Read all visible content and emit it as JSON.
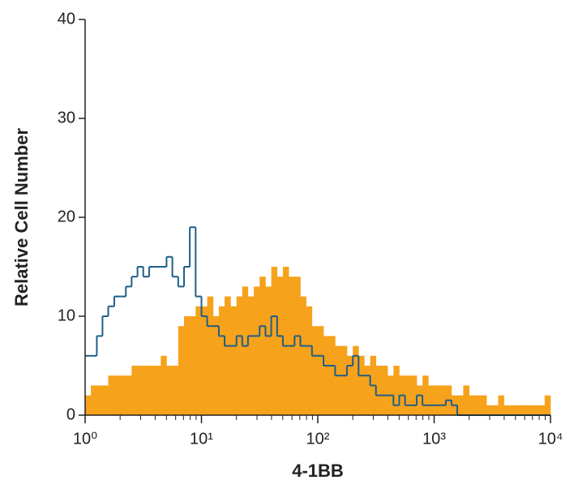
{
  "chart_data": {
    "type": "histogram",
    "xlabel": "4-1BB",
    "ylabel": "Relative Cell Number",
    "xscale": "log",
    "xlim": [
      1,
      10000
    ],
    "ylim": [
      0,
      40
    ],
    "xticks": [
      {
        "value": 1,
        "label": "10⁰"
      },
      {
        "value": 10,
        "label": "10¹"
      },
      {
        "value": 100,
        "label": "10²"
      },
      {
        "value": 1000,
        "label": "10³"
      },
      {
        "value": 10000,
        "label": "10⁴"
      }
    ],
    "xminorticks": [
      2,
      3,
      4,
      5,
      6,
      7,
      8,
      9,
      20,
      30,
      40,
      50,
      60,
      70,
      80,
      90,
      200,
      300,
      400,
      500,
      600,
      700,
      800,
      900,
      2000,
      3000,
      4000,
      5000,
      6000,
      7000,
      8000,
      9000
    ],
    "yticks": [
      0,
      10,
      20,
      30,
      40
    ],
    "bins": [
      1,
      1.12,
      1.26,
      1.41,
      1.58,
      1.78,
      2,
      2.24,
      2.51,
      2.82,
      3.16,
      3.55,
      3.98,
      4.47,
      5.01,
      5.62,
      6.31,
      7.08,
      7.94,
      8.91,
      10,
      11.2,
      12.6,
      14.1,
      15.8,
      17.8,
      20,
      22.4,
      25.1,
      28.2,
      31.6,
      35.5,
      39.8,
      44.7,
      50.1,
      56.2,
      63.1,
      70.8,
      79.4,
      89.1,
      100,
      112,
      126,
      141,
      158,
      178,
      200,
      224,
      251,
      282,
      316,
      355,
      398,
      447,
      501,
      562,
      631,
      708,
      794,
      891,
      1000,
      1120,
      1260,
      1410,
      1580,
      1780,
      2000,
      2240,
      2510,
      2820,
      3160,
      3550,
      3980,
      4470,
      5010,
      5620,
      6310,
      7080,
      7940,
      8910,
      10000
    ],
    "series": [
      {
        "color": "#f7a21b",
        "style": "filled",
        "values": [
          2,
          3,
          3,
          3,
          4,
          4,
          4,
          4,
          5,
          5,
          5,
          5,
          5,
          6,
          5,
          5,
          9,
          10,
          10,
          11,
          11,
          12,
          10,
          11,
          12,
          11,
          12,
          13,
          12,
          13,
          14,
          13,
          15,
          14,
          15,
          14,
          14,
          12,
          11,
          9,
          9,
          8,
          8,
          7,
          7,
          6,
          7,
          6,
          5,
          6,
          5,
          5,
          4,
          5,
          4,
          4,
          4,
          3,
          4,
          3,
          3,
          3,
          3,
          2,
          2,
          3,
          2,
          2,
          2,
          1,
          1,
          2,
          1,
          1,
          1,
          1,
          1,
          1,
          1,
          2
        ]
      },
      {
        "color": "#1d5f8a",
        "style": "outline",
        "values": [
          6,
          6,
          8,
          10,
          11,
          12,
          12,
          13,
          14,
          15,
          14,
          15,
          15,
          15,
          16,
          14,
          13,
          15,
          19,
          12,
          10,
          9,
          9,
          8,
          7,
          7,
          8,
          7,
          8,
          8,
          9,
          8,
          10,
          8,
          7,
          7,
          8,
          7,
          7,
          6,
          6,
          5,
          5,
          4,
          4,
          5,
          6,
          4,
          4,
          3,
          2,
          2,
          2,
          1,
          2,
          1,
          1,
          2,
          1,
          1,
          1,
          1,
          1.5,
          1,
          0,
          0,
          0,
          0,
          0,
          0,
          0,
          0,
          0,
          0,
          0,
          0,
          0,
          0,
          0,
          0
        ]
      }
    ]
  }
}
